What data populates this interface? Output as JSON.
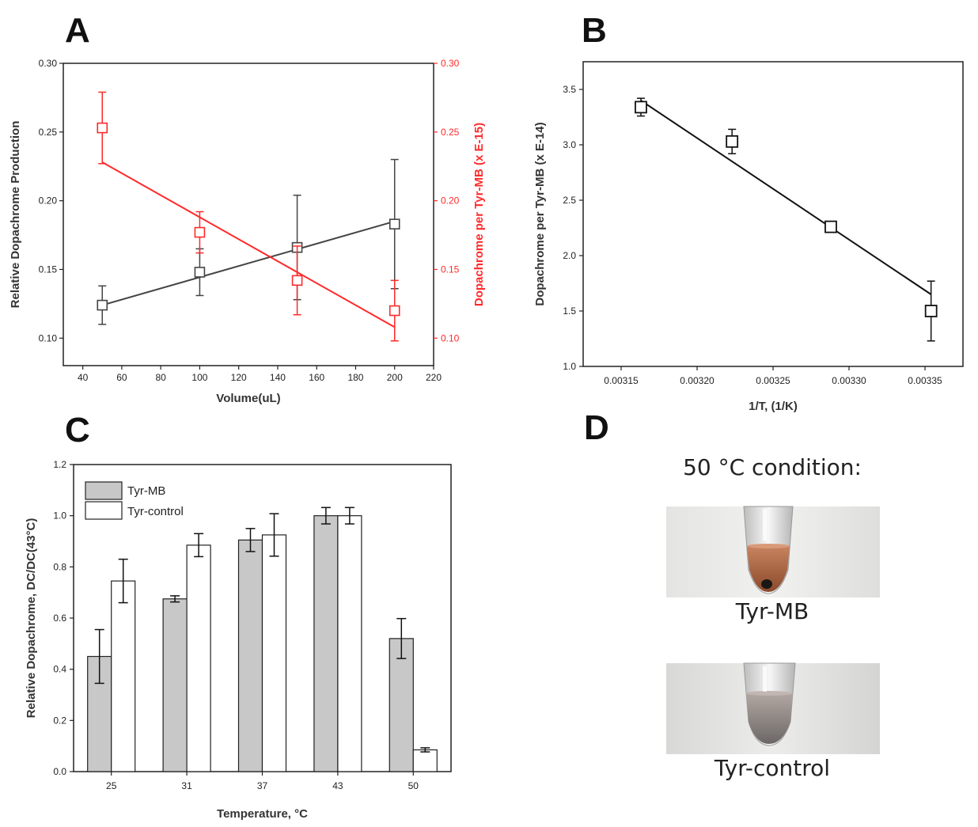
{
  "chart_data": [
    {
      "panel": "A",
      "type": "scatter",
      "xlabel": "Volume(uL)",
      "ylabel_left": "Relative Dopachrome Production",
      "ylabel_right": "Dopachrome per Tyr-MB (x E-15)",
      "xlim": [
        30,
        220
      ],
      "ylim": [
        0.08,
        0.3
      ],
      "xticks": [
        40,
        60,
        80,
        100,
        120,
        140,
        160,
        180,
        200,
        220
      ],
      "yticks": [
        0.1,
        0.15,
        0.2,
        0.25,
        0.3
      ],
      "yticks_right": [
        0.1,
        0.15,
        0.2,
        0.25,
        0.3
      ],
      "series": [
        {
          "name": "Relative Dopachrome Production",
          "axis": "left",
          "color": "#444444",
          "x": [
            50,
            100,
            150,
            200
          ],
          "y": [
            0.124,
            0.148,
            0.166,
            0.183
          ],
          "err": [
            0.014,
            0.017,
            0.038,
            0.047
          ],
          "fit": [
            [
              50,
              0.124
            ],
            [
              200,
              0.185
            ]
          ]
        },
        {
          "name": "Dopachrome per Tyr-MB (x E-15)",
          "axis": "right",
          "color": "#ff2a2a",
          "x": [
            50,
            100,
            150,
            200
          ],
          "y": [
            0.253,
            0.177,
            0.142,
            0.12
          ],
          "err": [
            0.026,
            0.015,
            0.025,
            0.022
          ],
          "fit": [
            [
              50,
              0.228
            ],
            [
              200,
              0.108
            ]
          ]
        }
      ]
    },
    {
      "panel": "B",
      "type": "scatter",
      "xlabel": "1/T, (1/K)",
      "ylabel": "Dopachrome per Tyr-MB (x E-14)",
      "xlim": [
        0.003125,
        0.003375
      ],
      "ylim": [
        1.0,
        3.75
      ],
      "xticks": [
        0.00315,
        0.0032,
        0.00325,
        0.0033,
        0.00335
      ],
      "xtick_labels": [
        "0.00315",
        "0.00320",
        "0.00325",
        "0.00330",
        "0.00335"
      ],
      "yticks": [
        1.0,
        1.5,
        2.0,
        2.5,
        3.0,
        3.5
      ],
      "series": [
        {
          "name": "Dopachrome per Tyr-MB",
          "x": [
            0.003163,
            0.003223,
            0.003288,
            0.003354
          ],
          "y": [
            3.34,
            3.03,
            2.26,
            1.5
          ],
          "err": [
            0.08,
            0.11,
            0.03,
            0.27
          ],
          "fit": [
            [
              0.003163,
              3.4
            ],
            [
              0.003354,
              1.65
            ]
          ]
        }
      ]
    },
    {
      "panel": "C",
      "type": "bar",
      "xlabel": "Temperature, °C",
      "ylabel": "Relative Dopachrome, DC/DC(43°C)",
      "categories": [
        "25",
        "31",
        "37",
        "43",
        "50"
      ],
      "ylim": [
        0.0,
        1.2
      ],
      "yticks": [
        0.0,
        0.2,
        0.4,
        0.6,
        0.8,
        1.0,
        1.2
      ],
      "legend": [
        "Tyr-MB",
        "Tyr-control"
      ],
      "series": [
        {
          "name": "Tyr-MB",
          "color": "#c8c8c8",
          "values": [
            0.45,
            0.675,
            0.905,
            1.0,
            0.52
          ],
          "err": [
            0.105,
            0.012,
            0.045,
            0.032,
            0.078
          ]
        },
        {
          "name": "Tyr-control",
          "color": "#ffffff",
          "values": [
            0.745,
            0.885,
            0.925,
            1.0,
            0.085
          ],
          "err": [
            0.085,
            0.045,
            0.083,
            0.032,
            0.008
          ]
        }
      ]
    }
  ],
  "panels": {
    "a": "A",
    "b": "B",
    "c": "C",
    "d": "D"
  },
  "photo_panel": {
    "title": "50 °C condition:",
    "caption_top": "Tyr-MB",
    "caption_bottom": "Tyr-control"
  }
}
